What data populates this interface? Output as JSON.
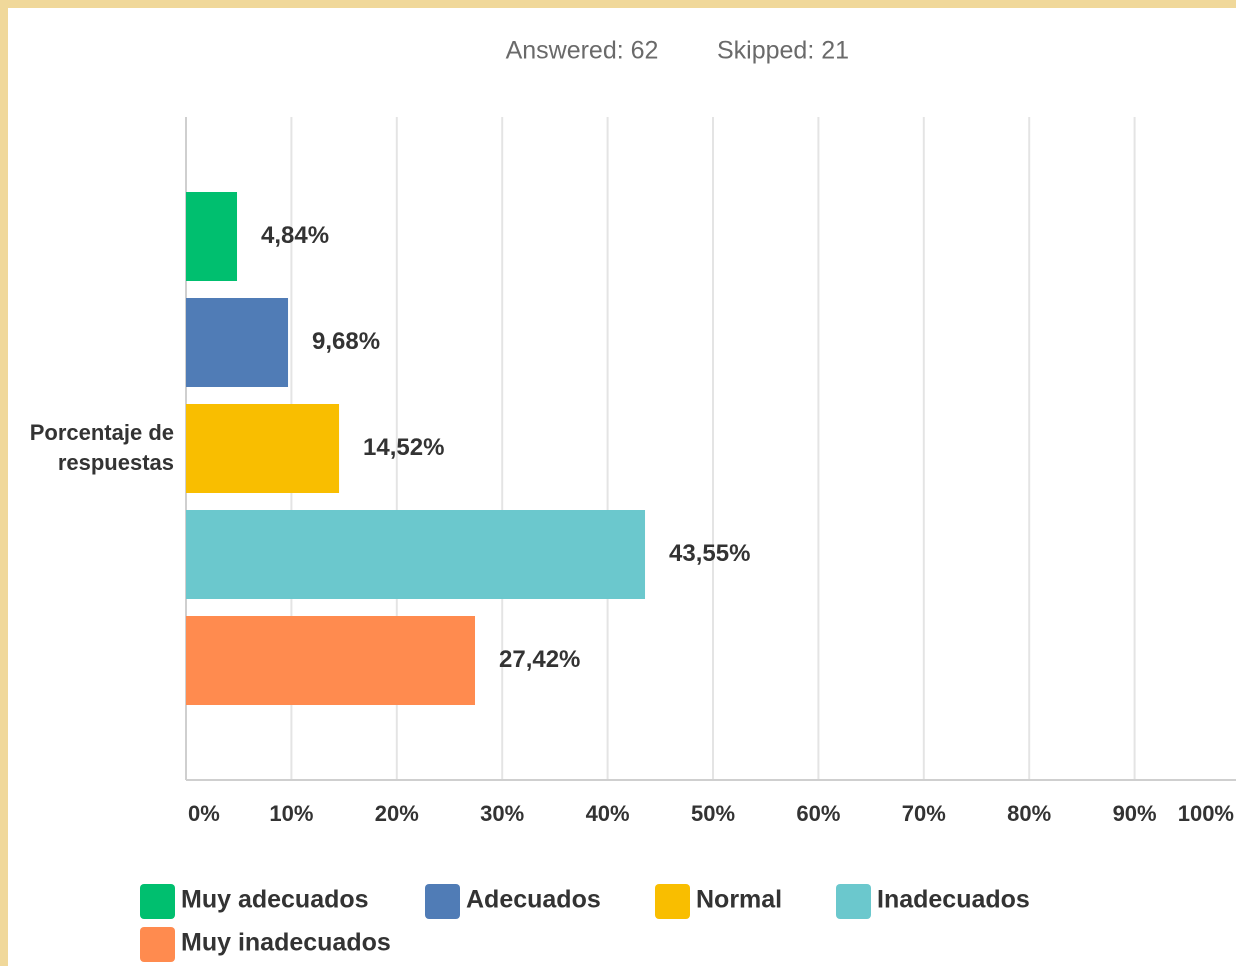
{
  "chart_data": {
    "type": "bar",
    "orientation": "horizontal",
    "subtitle": [
      "Answered: 62",
      "Skipped: 21"
    ],
    "categories": [
      "Porcentaje de respuestas"
    ],
    "series": [
      {
        "name": "Muy adecuados",
        "color": "#00bf6f",
        "values": [
          4.84
        ],
        "value_labels": [
          "4,84%"
        ]
      },
      {
        "name": "Adecuados",
        "color": "#507cb6",
        "values": [
          9.68
        ],
        "value_labels": [
          "9,68%"
        ]
      },
      {
        "name": "Normal",
        "color": "#f9be00",
        "values": [
          14.52
        ],
        "value_labels": [
          "14,52%"
        ]
      },
      {
        "name": "Inadecuados",
        "color": "#6bc8cd",
        "values": [
          43.55
        ],
        "value_labels": [
          "43,55%"
        ]
      },
      {
        "name": "Muy inadecuados",
        "color": "#ff8b4f",
        "values": [
          27.42
        ],
        "value_labels": [
          "27,42%"
        ]
      }
    ],
    "xlim": [
      0,
      100
    ],
    "xticks": [
      {
        "value": 0,
        "label": "0%"
      },
      {
        "value": 10,
        "label": "10%"
      },
      {
        "value": 20,
        "label": "20%"
      },
      {
        "value": 30,
        "label": "30%"
      },
      {
        "value": 40,
        "label": "40%"
      },
      {
        "value": 50,
        "label": "50%"
      },
      {
        "value": 60,
        "label": "60%"
      },
      {
        "value": 70,
        "label": "70%"
      },
      {
        "value": 80,
        "label": "80%"
      },
      {
        "value": 90,
        "label": "90%"
      },
      {
        "value": 100,
        "label": "100%"
      }
    ],
    "grid": true,
    "legend": "bottom"
  }
}
